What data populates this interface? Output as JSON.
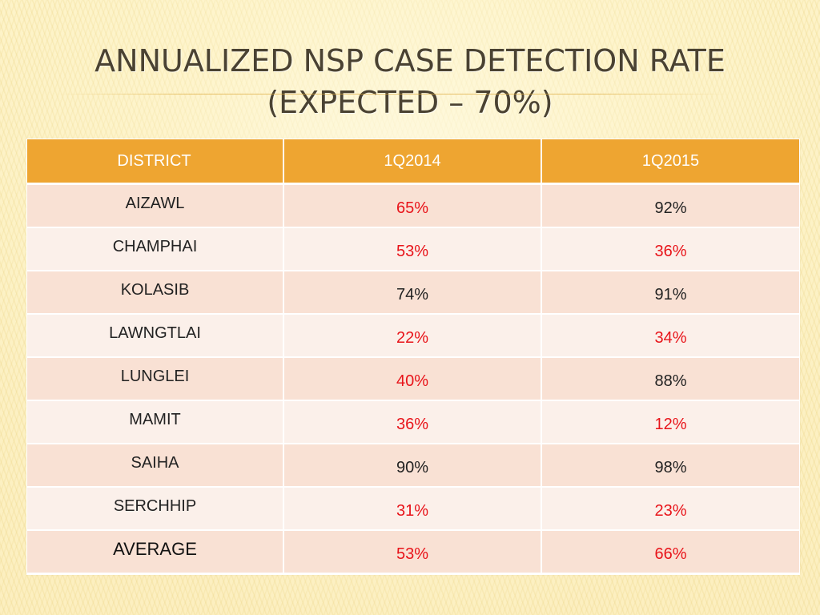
{
  "slide": {
    "title_line1": "ANNUALIZED NSP CASE DETECTION RATE",
    "title_line2": "(EXPECTED – 70%)"
  },
  "table": {
    "headers": [
      "DISTRICT",
      "1Q2014",
      "1Q2015"
    ],
    "rows": [
      {
        "district": "AIZAWL",
        "q2014": "65%",
        "q2015": "92%",
        "q2014_color": "red",
        "q2015_color": "black"
      },
      {
        "district": "CHAMPHAI",
        "q2014": "53%",
        "q2015": "36%",
        "q2014_color": "red",
        "q2015_color": "red"
      },
      {
        "district": "KOLASIB",
        "q2014": "74%",
        "q2015": "91%",
        "q2014_color": "black",
        "q2015_color": "black"
      },
      {
        "district": "LAWNGTLAI",
        "q2014": "22%",
        "q2015": "34%",
        "q2014_color": "red",
        "q2015_color": "red"
      },
      {
        "district": "LUNGLEI",
        "q2014": "40%",
        "q2015": "88%",
        "q2014_color": "red",
        "q2015_color": "black"
      },
      {
        "district": "MAMIT",
        "q2014": "36%",
        "q2015": "12%",
        "q2014_color": "red",
        "q2015_color": "red"
      },
      {
        "district": "SAIHA",
        "q2014": "90%",
        "q2015": "98%",
        "q2014_color": "black",
        "q2015_color": "black"
      },
      {
        "district": "SERCHHIP",
        "q2014": "31%",
        "q2015": "23%",
        "q2014_color": "red",
        "q2015_color": "red"
      },
      {
        "district": "AVERAGE",
        "q2014": "53%",
        "q2015": "66%",
        "q2014_color": "red",
        "q2015_color": "red"
      }
    ]
  },
  "colors": {
    "header_bg": "#eea531",
    "row_odd": "#f9e1d4",
    "row_even": "#fbf0ea",
    "below_target": "#e8141a",
    "meets_target": "#222222",
    "background": "#fcf1c3"
  }
}
